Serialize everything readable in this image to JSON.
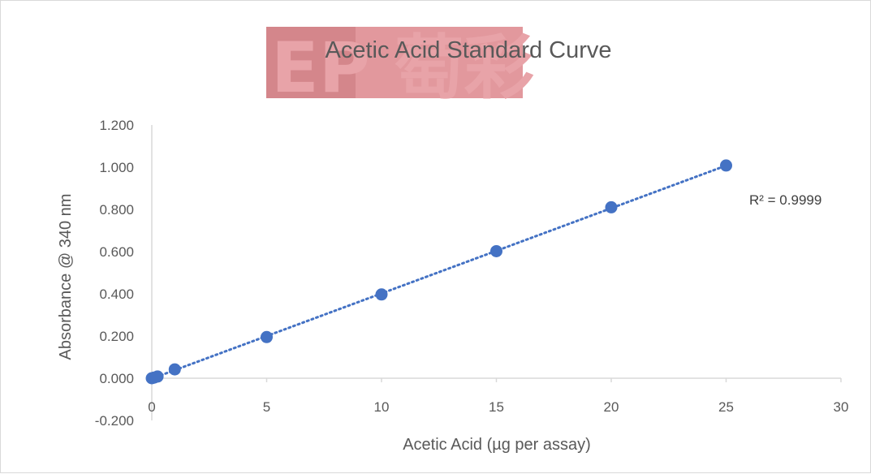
{
  "chart_data": {
    "type": "scatter",
    "title": "Acetic Acid Standard Curve",
    "xlabel": "Acetic Acid (µg per assay)",
    "ylabel": "Absorbance @ 340 nm",
    "xlim": [
      0,
      30
    ],
    "ylim": [
      -0.2,
      1.2
    ],
    "xticks": [
      "0",
      "5",
      "10",
      "15",
      "20",
      "25",
      "30"
    ],
    "yticks": [
      "-0.200",
      "0.000",
      "0.200",
      "0.400",
      "0.600",
      "0.800",
      "1.000",
      "1.200"
    ],
    "x": [
      0,
      0.1,
      0.25,
      1,
      5,
      10,
      15,
      20,
      25
    ],
    "y": [
      0.0,
      0.003,
      0.008,
      0.042,
      0.195,
      0.397,
      0.602,
      0.81,
      1.008
    ],
    "trendline": {
      "type": "linear",
      "style": "dotted",
      "r_squared_label": "R² = 0.9999"
    },
    "grid": false,
    "marker_color": "#4472c4",
    "trendline_color": "#4472c4"
  },
  "watermark": {
    "text": "EP 萄彩",
    "colors": {
      "dark": "#d88c90",
      "light": "#e8a3a8"
    }
  }
}
